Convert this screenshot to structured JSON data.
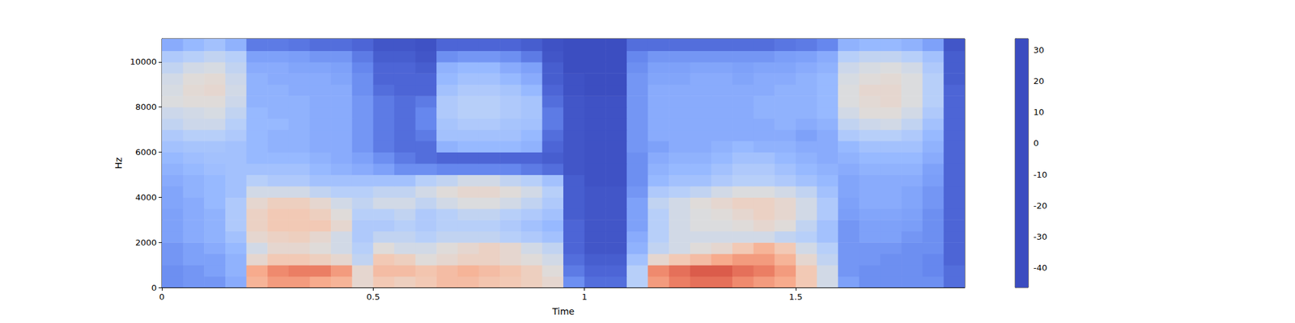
{
  "chart_data": {
    "type": "heatmap",
    "x_label": "Time",
    "y_label": "Hz",
    "xlim": [
      0,
      1.9
    ],
    "ylim": [
      0,
      11025
    ],
    "xticks": [
      0,
      0.5,
      1,
      1.5
    ],
    "yticks": [
      0,
      2000,
      4000,
      6000,
      8000,
      10000
    ],
    "zlim": [
      -46.4,
      33.7
    ],
    "zticks": [
      -40,
      -30,
      -20,
      -10,
      0,
      10,
      20,
      30
    ],
    "x_bins": [
      0,
      0.05,
      0.1,
      0.15,
      0.2,
      0.25,
      0.3,
      0.35,
      0.4,
      0.45,
      0.5,
      0.55,
      0.6,
      0.65,
      0.7,
      0.75,
      0.8,
      0.85,
      0.9,
      0.95,
      1,
      1.05,
      1.1,
      1.15,
      1.2,
      1.25,
      1.3,
      1.35,
      1.4,
      1.45,
      1.5,
      1.55,
      1.6,
      1.65,
      1.7,
      1.75,
      1.8,
      1.85,
      1.9
    ],
    "y_bins": [
      0,
      500,
      1000,
      1500,
      2000,
      2500,
      3000,
      3500,
      4000,
      4500,
      5000,
      5500,
      6000,
      6500,
      7000,
      7500,
      8000,
      8500,
      9000,
      9500,
      10000,
      10500,
      11025
    ],
    "z": [
      [
        -30,
        -28,
        -28,
        -22,
        10,
        15,
        15,
        12,
        10,
        0,
        5,
        3,
        5,
        8,
        8,
        6,
        5,
        3,
        0,
        -30,
        -38,
        -38,
        -10,
        15,
        20,
        22,
        22,
        18,
        15,
        12,
        5,
        -5,
        -25,
        -30,
        -30,
        -30,
        -30,
        -38
      ],
      [
        -30,
        -28,
        -25,
        -20,
        12,
        18,
        20,
        20,
        15,
        0,
        8,
        8,
        6,
        8,
        10,
        8,
        6,
        3,
        -2,
        -35,
        -40,
        -40,
        -10,
        18,
        22,
        25,
        25,
        22,
        20,
        15,
        5,
        -5,
        -28,
        -30,
        -30,
        -30,
        -32,
        -38
      ],
      [
        -28,
        -25,
        -25,
        -20,
        0,
        5,
        5,
        3,
        0,
        -8,
        5,
        3,
        -2,
        0,
        2,
        2,
        0,
        -2,
        -5,
        -38,
        -42,
        -42,
        -15,
        0,
        5,
        8,
        12,
        15,
        15,
        10,
        0,
        -8,
        -28,
        -28,
        -30,
        -30,
        -32,
        -40
      ],
      [
        -28,
        -25,
        -22,
        -18,
        -5,
        0,
        0,
        -2,
        -5,
        -10,
        -2,
        -5,
        -5,
        -2,
        0,
        2,
        0,
        -5,
        -8,
        -40,
        -44,
        -44,
        -20,
        -8,
        -5,
        -2,
        0,
        5,
        10,
        5,
        -5,
        -10,
        -28,
        -28,
        -28,
        -30,
        -30,
        -40
      ],
      [
        -25,
        -22,
        -20,
        -15,
        0,
        2,
        3,
        0,
        -5,
        -12,
        -8,
        -8,
        -10,
        -8,
        -8,
        -8,
        -10,
        -12,
        -15,
        -40,
        -44,
        -44,
        -22,
        -10,
        -5,
        -5,
        -5,
        -5,
        -5,
        -8,
        -10,
        -15,
        -28,
        -25,
        -25,
        -28,
        -30,
        -40
      ],
      [
        -25,
        -22,
        -20,
        -12,
        2,
        5,
        5,
        5,
        0,
        -12,
        -12,
        -10,
        -12,
        -10,
        -10,
        -10,
        -12,
        -15,
        -18,
        -40,
        -44,
        -44,
        -25,
        -10,
        -5,
        -3,
        -3,
        -2,
        0,
        -2,
        -8,
        -15,
        -28,
        -25,
        -25,
        -26,
        -30,
        -40
      ],
      [
        -25,
        -22,
        -20,
        -12,
        2,
        5,
        5,
        3,
        -2,
        -10,
        -10,
        -8,
        -12,
        -10,
        -8,
        -8,
        -10,
        -12,
        -15,
        -42,
        -44,
        -44,
        -25,
        -10,
        -5,
        -3,
        -2,
        0,
        2,
        0,
        -5,
        -12,
        -26,
        -24,
        -24,
        -25,
        -30,
        -40
      ],
      [
        -24,
        -22,
        -18,
        -12,
        0,
        3,
        3,
        0,
        -5,
        -8,
        -5,
        -5,
        -8,
        -5,
        -3,
        -3,
        -5,
        -8,
        -12,
        -42,
        -44,
        -44,
        -25,
        -8,
        -5,
        -2,
        0,
        2,
        2,
        0,
        -5,
        -12,
        -25,
        -22,
        -22,
        -24,
        -28,
        -40
      ],
      [
        -24,
        -20,
        -18,
        -15,
        -5,
        -5,
        -5,
        -8,
        -10,
        -10,
        -8,
        -8,
        -5,
        -2,
        0,
        0,
        -2,
        -5,
        -10,
        -42,
        -44,
        -44,
        -28,
        -12,
        -10,
        -8,
        -5,
        -3,
        -3,
        -5,
        -8,
        -15,
        -24,
        -22,
        -22,
        -24,
        -28,
        -40
      ],
      [
        -22,
        -20,
        -18,
        -15,
        -10,
        -12,
        -12,
        -15,
        -15,
        -15,
        -15,
        -15,
        -10,
        -8,
        -5,
        -5,
        -8,
        -10,
        -15,
        -42,
        -45,
        -45,
        -30,
        -18,
        -15,
        -15,
        -12,
        -10,
        -10,
        -12,
        -15,
        -18,
        -24,
        -22,
        -22,
        -22,
        -26,
        -40
      ],
      [
        -20,
        -18,
        -16,
        -15,
        -15,
        -15,
        -15,
        -18,
        -20,
        -22,
        -25,
        -30,
        -30,
        -32,
        -32,
        -32,
        -32,
        -35,
        -38,
        -44,
        -45,
        -45,
        -30,
        -20,
        -18,
        -18,
        -15,
        -12,
        -12,
        -15,
        -18,
        -20,
        -22,
        -20,
        -20,
        -20,
        -25,
        -40
      ],
      [
        -18,
        -16,
        -15,
        -15,
        -18,
        -18,
        -18,
        -20,
        -22,
        -25,
        -30,
        -35,
        -38,
        -40,
        -40,
        -40,
        -40,
        -40,
        -42,
        -44,
        -45,
        -45,
        -30,
        -22,
        -20,
        -20,
        -18,
        -15,
        -15,
        -18,
        -20,
        -22,
        -20,
        -18,
        -18,
        -18,
        -22,
        -40
      ],
      [
        -15,
        -14,
        -14,
        -15,
        -18,
        -20,
        -20,
        -22,
        -22,
        -28,
        -35,
        -38,
        -38,
        -20,
        -18,
        -18,
        -18,
        -20,
        -40,
        -44,
        -45,
        -45,
        -28,
        -25,
        -22,
        -22,
        -20,
        -18,
        -20,
        -20,
        -22,
        -22,
        -18,
        -15,
        -15,
        -15,
        -20,
        -40
      ],
      [
        -12,
        -10,
        -10,
        -12,
        -18,
        -20,
        -20,
        -22,
        -22,
        -28,
        -35,
        -38,
        -35,
        -15,
        -15,
        -15,
        -15,
        -18,
        -38,
        -44,
        -45,
        -45,
        -28,
        -22,
        -22,
        -22,
        -22,
        -22,
        -22,
        -22,
        -25,
        -22,
        -12,
        -10,
        -10,
        -12,
        -18,
        -40
      ],
      [
        -8,
        -6,
        -6,
        -10,
        -18,
        -18,
        -20,
        -22,
        -22,
        -28,
        -35,
        -38,
        -32,
        -14,
        -12,
        -12,
        -14,
        -15,
        -35,
        -44,
        -45,
        -45,
        -28,
        -22,
        -22,
        -22,
        -22,
        -22,
        -22,
        -20,
        -22,
        -20,
        -8,
        -6,
        -5,
        -8,
        -15,
        -40
      ],
      [
        -6,
        -5,
        -4,
        -8,
        -18,
        -20,
        -20,
        -22,
        -22,
        -28,
        -35,
        -38,
        -32,
        -12,
        -10,
        -10,
        -12,
        -14,
        -35,
        -44,
        -45,
        -45,
        -28,
        -22,
        -22,
        -22,
        -22,
        -22,
        -20,
        -20,
        -20,
        -18,
        -5,
        -2,
        -2,
        -5,
        -12,
        -40
      ],
      [
        -3,
        -2,
        -2,
        -6,
        -20,
        -20,
        -20,
        -22,
        -22,
        -28,
        -35,
        -38,
        -35,
        -12,
        -10,
        -10,
        -12,
        -14,
        -38,
        -44,
        -45,
        -45,
        -28,
        -22,
        -22,
        -22,
        -22,
        -22,
        -20,
        -20,
        -20,
        -18,
        -3,
        -1,
        0,
        -3,
        -10,
        -40
      ],
      [
        -4,
        -1,
        0,
        -5,
        -20,
        -20,
        -22,
        -22,
        -22,
        -30,
        -38,
        -40,
        -40,
        -15,
        -12,
        -12,
        -14,
        -18,
        -40,
        -45,
        -46,
        -46,
        -28,
        -22,
        -22,
        -22,
        -22,
        -22,
        -22,
        -20,
        -20,
        -18,
        -3,
        0,
        0,
        -3,
        -10,
        -40
      ],
      [
        -5,
        -2,
        -1,
        -6,
        -20,
        -22,
        -22,
        -22,
        -24,
        -30,
        -40,
        -40,
        -40,
        -18,
        -15,
        -15,
        -18,
        -22,
        -42,
        -45,
        -46,
        -46,
        -28,
        -24,
        -24,
        -22,
        -22,
        -24,
        -22,
        -22,
        -20,
        -18,
        -4,
        -2,
        -1,
        -3,
        -10,
        -42
      ],
      [
        -8,
        -5,
        -4,
        -8,
        -22,
        -22,
        -24,
        -24,
        -25,
        -32,
        -40,
        -40,
        -42,
        -20,
        -18,
        -18,
        -22,
        -25,
        -42,
        -46,
        -46,
        -46,
        -30,
        -25,
        -25,
        -24,
        -24,
        -25,
        -24,
        -24,
        -22,
        -20,
        -6,
        -4,
        -3,
        -5,
        -12,
        -42
      ],
      [
        -12,
        -10,
        -8,
        -10,
        -25,
        -25,
        -26,
        -28,
        -28,
        -35,
        -42,
        -42,
        -44,
        -30,
        -28,
        -28,
        -30,
        -35,
        -44,
        -46,
        -46,
        -46,
        -32,
        -28,
        -28,
        -28,
        -28,
        -28,
        -28,
        -26,
        -25,
        -22,
        -10,
        -8,
        -8,
        -10,
        -15,
        -42
      ],
      [
        -22,
        -18,
        -15,
        -20,
        -35,
        -35,
        -36,
        -38,
        -38,
        -40,
        -44,
        -44,
        -45,
        -40,
        -40,
        -40,
        -40,
        -42,
        -45,
        -46,
        -46,
        -46,
        -38,
        -38,
        -38,
        -38,
        -38,
        -38,
        -38,
        -36,
        -35,
        -32,
        -20,
        -18,
        -18,
        -20,
        -25,
        -44
      ]
    ]
  }
}
